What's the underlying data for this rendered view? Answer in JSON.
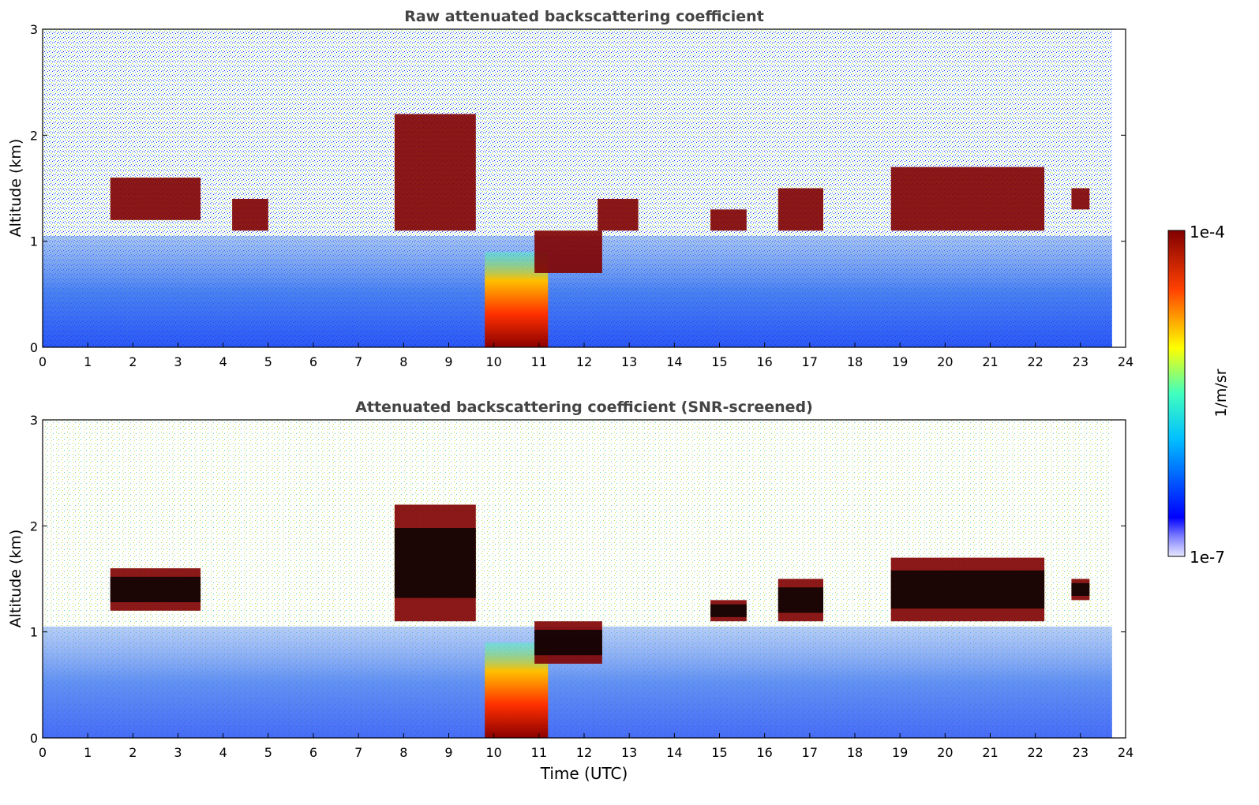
{
  "colors": {
    "axis": "#000000",
    "title": "#444444",
    "cloud": "#7f0000",
    "cloud_core": "#000000",
    "background": "#ffffff"
  },
  "chart_data": [
    {
      "type": "heatmap",
      "title": "Raw attenuated backscattering coefficient",
      "xlabel": "",
      "ylabel": "Altitude (km)",
      "xlim": [
        0,
        24
      ],
      "ylim": [
        0,
        3
      ],
      "xticks": [
        "0",
        "1",
        "2",
        "3",
        "4",
        "5",
        "6",
        "7",
        "8",
        "9",
        "10",
        "11",
        "12",
        "13",
        "14",
        "15",
        "16",
        "17",
        "18",
        "19",
        "20",
        "21",
        "22",
        "23",
        "24"
      ],
      "yticks": [
        "0",
        "1",
        "2",
        "3"
      ],
      "data_end_time": 23.7,
      "cloud_layers": [
        {
          "start": 1.5,
          "end": 3.5,
          "base_km": 1.2,
          "top_km": 1.6
        },
        {
          "start": 4.2,
          "end": 5.0,
          "base_km": 1.1,
          "top_km": 1.4
        },
        {
          "start": 7.8,
          "end": 9.6,
          "base_km": 1.1,
          "top_km": 2.2
        },
        {
          "start": 10.9,
          "end": 12.4,
          "base_km": 0.7,
          "top_km": 1.1
        },
        {
          "start": 12.3,
          "end": 13.2,
          "base_km": 1.1,
          "top_km": 1.4
        },
        {
          "start": 14.8,
          "end": 15.6,
          "base_km": 1.1,
          "top_km": 1.3
        },
        {
          "start": 16.3,
          "end": 17.3,
          "base_km": 1.1,
          "top_km": 1.5
        },
        {
          "start": 18.8,
          "end": 22.2,
          "base_km": 1.1,
          "top_km": 1.7
        },
        {
          "start": 22.8,
          "end": 23.2,
          "base_km": 1.3,
          "top_km": 1.5
        }
      ],
      "strong_surface_signal": {
        "start": 9.8,
        "end": 11.2,
        "top_km": 0.9
      }
    },
    {
      "type": "heatmap",
      "title": "Attenuated backscattering coefficient (SNR-screened)",
      "xlabel": "Time (UTC)",
      "ylabel": "Altitude (km)",
      "xlim": [
        0,
        24
      ],
      "ylim": [
        0,
        3
      ],
      "xticks": [
        "0",
        "1",
        "2",
        "3",
        "4",
        "5",
        "6",
        "7",
        "8",
        "9",
        "10",
        "11",
        "12",
        "13",
        "14",
        "15",
        "16",
        "17",
        "18",
        "19",
        "20",
        "21",
        "22",
        "23",
        "24"
      ],
      "yticks": [
        "0",
        "1",
        "2",
        "3"
      ],
      "data_end_time": 23.7,
      "cloud_layers": [
        {
          "start": 1.5,
          "end": 3.5,
          "base_km": 1.2,
          "top_km": 1.6
        },
        {
          "start": 7.8,
          "end": 9.6,
          "base_km": 1.1,
          "top_km": 2.2
        },
        {
          "start": 10.9,
          "end": 12.4,
          "base_km": 0.7,
          "top_km": 1.1
        },
        {
          "start": 14.8,
          "end": 15.6,
          "base_km": 1.1,
          "top_km": 1.3
        },
        {
          "start": 16.3,
          "end": 17.3,
          "base_km": 1.1,
          "top_km": 1.5
        },
        {
          "start": 18.8,
          "end": 22.2,
          "base_km": 1.1,
          "top_km": 1.7
        },
        {
          "start": 22.8,
          "end": 23.2,
          "base_km": 1.3,
          "top_km": 1.5
        }
      ],
      "strong_surface_signal": {
        "start": 9.8,
        "end": 11.2,
        "top_km": 0.9
      }
    }
  ],
  "colorbar": {
    "label": "1/m/sr",
    "max_label": "1e-4",
    "min_label": "1e-7",
    "colormap": "jet",
    "scale": "log"
  }
}
